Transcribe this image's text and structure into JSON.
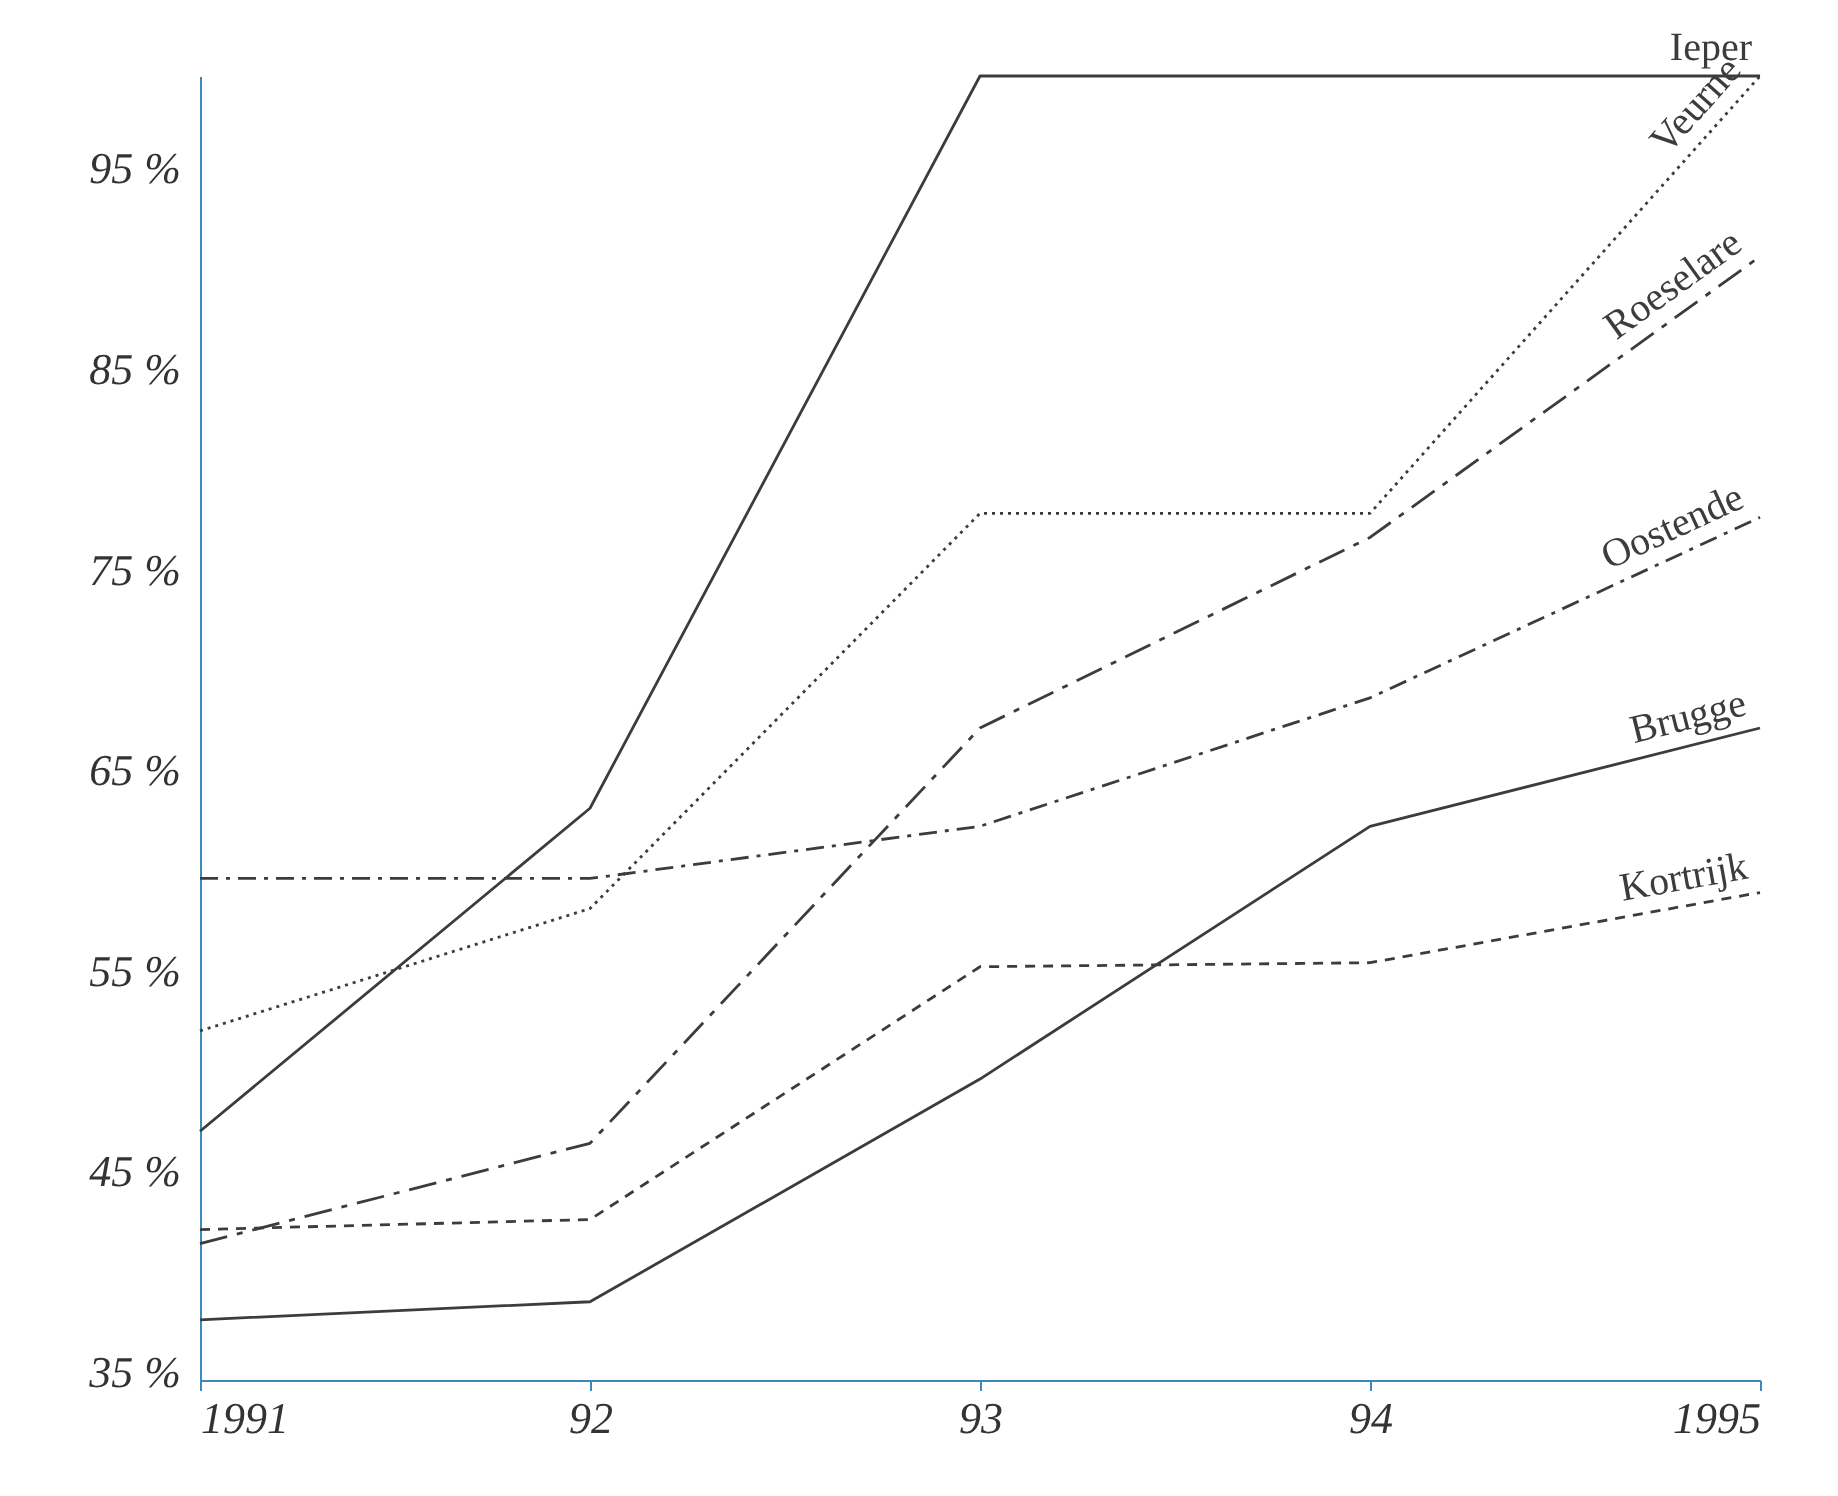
{
  "chart_data": {
    "type": "line",
    "x": [
      1991,
      1992,
      1993,
      1994,
      1995
    ],
    "xlim": [
      1991,
      1995
    ],
    "xticks": [
      1991,
      {
        "value": 1992,
        "label": "92"
      },
      {
        "value": 1993,
        "label": "93"
      },
      {
        "value": 1994,
        "label": "94"
      },
      1995
    ],
    "ylim": [
      35,
      100
    ],
    "yticks": [
      {
        "value": 35,
        "label": "35 %"
      },
      {
        "value": 45,
        "label": "45 %"
      },
      {
        "value": 55,
        "label": "55 %"
      },
      {
        "value": 65,
        "label": "65 %"
      },
      {
        "value": 75,
        "label": "75 %"
      },
      {
        "value": 85,
        "label": "85 %"
      },
      {
        "value": 95,
        "label": "95 %"
      }
    ],
    "grid": false,
    "legend": false,
    "marker": "none",
    "series": [
      {
        "name": "Ieper",
        "color": "#3c3c3c",
        "line_style": "solid",
        "values": [
          47.4,
          63.5,
          100,
          100,
          100
        ]
      },
      {
        "name": "Veurne",
        "color": "#3c3c3c",
        "line_style": "dotted",
        "values": [
          52.4,
          58.5,
          78.2,
          78.2,
          100
        ]
      },
      {
        "name": "Roeselare",
        "color": "#3c3c3c",
        "line_style": "dashed",
        "values": [
          41.8,
          46.8,
          67.5,
          77,
          91
        ]
      },
      {
        "name": "Oostende",
        "color": "#3c3c3c",
        "line_style": "dashed",
        "values": [
          60,
          60,
          62.6,
          69,
          78
        ]
      },
      {
        "name": "Brugge",
        "color": "#3c3c3c",
        "line_style": "solid",
        "values": [
          38,
          38.9,
          50,
          62.6,
          67.5
        ]
      },
      {
        "name": "Kortrijk",
        "color": "#3c3c3c",
        "line_style": "dashed",
        "values": [
          42.5,
          43,
          55.6,
          55.8,
          59.3
        ]
      }
    ]
  }
}
